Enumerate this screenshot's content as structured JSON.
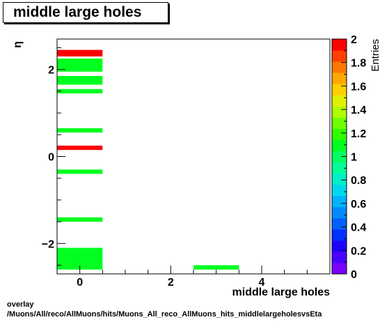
{
  "header": {
    "title": "middle large holes"
  },
  "footer": {
    "line1": "overlay",
    "line2": "/Muons/All/reco/AllMuons/hits/Muons_All_reco_AllMuons_hits_middlelargeholesvsEta"
  },
  "chart_data": {
    "type": "heatmap",
    "title": "middle large holes",
    "xlabel": "middle large holes",
    "ylabel": "η",
    "zlabel": "Entries",
    "xlim": [
      -0.5,
      5.5
    ],
    "ylim": [
      -2.7,
      2.7
    ],
    "zlim": [
      0,
      2
    ],
    "x_ticks": [
      "0",
      "2",
      "4"
    ],
    "y_ticks": [
      "−2",
      "0",
      "2"
    ],
    "z_ticks": [
      "0",
      "0.2",
      "0.4",
      "0.6",
      "0.8",
      "1",
      "1.2",
      "1.4",
      "1.6",
      "1.8",
      "2"
    ],
    "cells": [
      {
        "x0": -0.5,
        "x1": 0.5,
        "y0": 2.3,
        "y1": 2.45,
        "value": 2
      },
      {
        "x0": -0.5,
        "x1": 0.5,
        "y0": 1.95,
        "y1": 2.25,
        "value": 1.1
      },
      {
        "x0": -0.5,
        "x1": 0.5,
        "y0": 1.65,
        "y1": 1.85,
        "value": 1.1
      },
      {
        "x0": -0.5,
        "x1": 0.5,
        "y0": 1.45,
        "y1": 1.55,
        "value": 1.1
      },
      {
        "x0": -0.5,
        "x1": 0.5,
        "y0": 0.55,
        "y1": 0.65,
        "value": 1.1
      },
      {
        "x0": -0.5,
        "x1": 0.5,
        "y0": 0.15,
        "y1": 0.25,
        "value": 2
      },
      {
        "x0": -0.5,
        "x1": 0.5,
        "y0": -0.4,
        "y1": -0.3,
        "value": 1.1
      },
      {
        "x0": -0.5,
        "x1": 0.5,
        "y0": -1.5,
        "y1": -1.4,
        "value": 1.1
      },
      {
        "x0": -0.5,
        "x1": 0.5,
        "y0": -2.6,
        "y1": -2.1,
        "value": 1.1
      },
      {
        "x0": 2.5,
        "x1": 3.5,
        "y0": -2.6,
        "y1": -2.5,
        "value": 1.1
      }
    ],
    "palette": [
      "#7a00ff",
      "#4a00ff",
      "#1e00ff",
      "#0030ff",
      "#0060ff",
      "#008cff",
      "#00b4ff",
      "#00d8f0",
      "#00f0c8",
      "#00ff98",
      "#00ff60",
      "#00ff20",
      "#30ff00",
      "#70ff00",
      "#b0ff00",
      "#e0f000",
      "#ffd000",
      "#ffa800",
      "#ff7800",
      "#ff4000",
      "#ff0000"
    ],
    "grid": false,
    "log_scale": false
  }
}
